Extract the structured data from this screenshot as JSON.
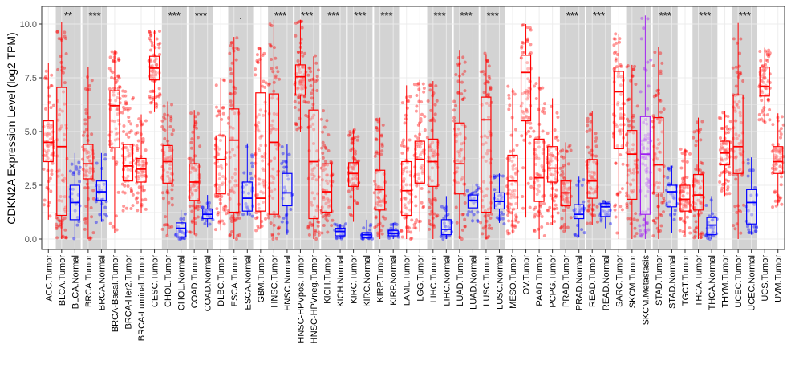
{
  "chart_data": {
    "type": "box",
    "title": "",
    "xlabel": "",
    "ylabel": "CDKN2A Expression Level (log2 TPM)",
    "ylim": [
      -0.4,
      10.6
    ],
    "yticks": [
      "0.0",
      "2.5",
      "5.0",
      "7.5",
      "10.0"
    ],
    "grid": true,
    "legend": "none",
    "colors": {
      "Tumor": "#FF0000",
      "Normal": "#0000FF",
      "Metastasis": "#A020F0",
      "shade": "#D3D3D3"
    },
    "series": [
      {
        "category": "ACC.Tumor",
        "group": "Tumor",
        "low": 0.9,
        "q1": 3.6,
        "median": 4.5,
        "q3": 5.5,
        "high": 8.2
      },
      {
        "category": "BLCA.Tumor",
        "group": "Tumor",
        "low": 0.0,
        "q1": 1.1,
        "median": 4.3,
        "q3": 7.05,
        "high": 10.1
      },
      {
        "category": "BLCA.Normal",
        "group": "Normal",
        "low": 0.1,
        "q1": 0.9,
        "median": 1.7,
        "q3": 2.5,
        "high": 4.0
      },
      {
        "category": "BRCA.Tumor",
        "group": "Tumor",
        "low": 0.0,
        "q1": 2.8,
        "median": 3.5,
        "q3": 4.4,
        "high": 8.0
      },
      {
        "category": "BRCA.Normal",
        "group": "Normal",
        "low": 0.8,
        "q1": 1.8,
        "median": 2.2,
        "q3": 2.7,
        "high": 4.0
      },
      {
        "category": "BRCA-Basal.Tumor",
        "group": "Tumor",
        "low": 0.3,
        "q1": 4.25,
        "median": 6.2,
        "q3": 6.9,
        "high": 8.8
      },
      {
        "category": "BRCA-Her2.Tumor",
        "group": "Tumor",
        "low": 1.2,
        "q1": 2.7,
        "median": 3.4,
        "q3": 4.4,
        "high": 6.9
      },
      {
        "category": "BRCA-Luminal.Tumor",
        "group": "Tumor",
        "low": 1.2,
        "q1": 2.65,
        "median": 3.25,
        "q3": 3.75,
        "high": 5.8
      },
      {
        "category": "CESC.Tumor",
        "group": "Tumor",
        "low": 5.9,
        "q1": 7.4,
        "median": 7.95,
        "q3": 8.5,
        "high": 9.7
      },
      {
        "category": "CHOL.Tumor",
        "group": "Tumor",
        "low": 0.2,
        "q1": 2.6,
        "median": 3.6,
        "q3": 4.35,
        "high": 6.4
      },
      {
        "category": "CHOL.Normal",
        "group": "Normal",
        "low": 0.0,
        "q1": 0.1,
        "median": 0.5,
        "q3": 0.75,
        "high": 1.35
      },
      {
        "category": "COAD.Tumor",
        "group": "Tumor",
        "low": 0.2,
        "q1": 1.8,
        "median": 2.65,
        "q3": 3.5,
        "high": 6.0
      },
      {
        "category": "COAD.Normal",
        "group": "Normal",
        "low": 0.55,
        "q1": 0.95,
        "median": 1.15,
        "q3": 1.4,
        "high": 2.05
      },
      {
        "category": "DLBC.Tumor",
        "group": "Tumor",
        "low": 0.4,
        "q1": 2.1,
        "median": 3.7,
        "q3": 4.8,
        "high": 7.5
      },
      {
        "category": "ESCA.Tumor",
        "group": "Tumor",
        "low": 0.0,
        "q1": 1.25,
        "median": 4.6,
        "q3": 6.05,
        "high": 9.4
      },
      {
        "category": "ESCA.Normal",
        "group": "Normal",
        "low": 1.1,
        "q1": 1.3,
        "median": 1.9,
        "q3": 2.65,
        "high": 4.45
      },
      {
        "category": "GBM.Tumor",
        "group": "Tumor",
        "low": 0.5,
        "q1": 1.3,
        "median": 1.9,
        "q3": 6.8,
        "high": 8.9
      },
      {
        "category": "HNSC.Tumor",
        "group": "Tumor",
        "low": 0.0,
        "q1": 1.15,
        "median": 4.5,
        "q3": 6.75,
        "high": 10.2
      },
      {
        "category": "HNSC.Normal",
        "group": "Normal",
        "low": 0.2,
        "q1": 1.55,
        "median": 2.15,
        "q3": 3.05,
        "high": 4.4
      },
      {
        "category": "HNSC-HPVpos.Tumor",
        "group": "Tumor",
        "low": 5.0,
        "q1": 6.7,
        "median": 7.55,
        "q3": 8.1,
        "high": 10.2
      },
      {
        "category": "HNSC-HPVneg.Tumor",
        "group": "Tumor",
        "low": 0.0,
        "q1": 0.95,
        "median": 3.6,
        "q3": 6.0,
        "high": 8.5
      },
      {
        "category": "KICH.Tumor",
        "group": "Tumor",
        "low": 0.2,
        "q1": 1.25,
        "median": 2.2,
        "q3": 3.5,
        "high": 6.2
      },
      {
        "category": "KICH.Normal",
        "group": "Normal",
        "low": 0.0,
        "q1": 0.15,
        "median": 0.35,
        "q3": 0.5,
        "high": 0.7
      },
      {
        "category": "KIRC.Tumor",
        "group": "Tumor",
        "low": 0.8,
        "q1": 2.45,
        "median": 3.05,
        "q3": 3.55,
        "high": 5.1
      },
      {
        "category": "KIRC.Normal",
        "group": "Normal",
        "low": 0.0,
        "q1": 0.05,
        "median": 0.2,
        "q3": 0.3,
        "high": 0.9
      },
      {
        "category": "KIRP.Tumor",
        "group": "Tumor",
        "low": 0.0,
        "q1": 1.35,
        "median": 2.3,
        "q3": 3.2,
        "high": 5.65
      },
      {
        "category": "KIRP.Normal",
        "group": "Normal",
        "low": 0.0,
        "q1": 0.15,
        "median": 0.25,
        "q3": 0.4,
        "high": 0.75
      },
      {
        "category": "LAML.Tumor",
        "group": "Tumor",
        "low": 0.0,
        "q1": 1.1,
        "median": 2.25,
        "q3": 3.6,
        "high": 7.15
      },
      {
        "category": "LGG.Tumor",
        "group": "Tumor",
        "low": 0.35,
        "q1": 2.6,
        "median": 3.7,
        "q3": 4.55,
        "high": 7.4
      },
      {
        "category": "LIHC.Tumor",
        "group": "Tumor",
        "low": 0.0,
        "q1": 2.45,
        "median": 3.6,
        "q3": 4.65,
        "high": 7.35
      },
      {
        "category": "LIHC.Normal",
        "group": "Normal",
        "low": 0.0,
        "q1": 0.2,
        "median": 0.45,
        "q3": 0.9,
        "high": 2.0
      },
      {
        "category": "LUAD.Tumor",
        "group": "Tumor",
        "low": 0.0,
        "q1": 2.1,
        "median": 3.5,
        "q3": 5.4,
        "high": 8.8
      },
      {
        "category": "LUAD.Normal",
        "group": "Normal",
        "low": 0.75,
        "q1": 1.45,
        "median": 1.8,
        "q3": 2.05,
        "high": 2.55
      },
      {
        "category": "LUSC.Tumor",
        "group": "Tumor",
        "low": 0.0,
        "q1": 1.25,
        "median": 5.55,
        "q3": 6.6,
        "high": 8.6
      },
      {
        "category": "LUSC.Normal",
        "group": "Normal",
        "low": 0.75,
        "q1": 1.4,
        "median": 1.75,
        "q3": 2.15,
        "high": 3.05
      },
      {
        "category": "MESO.Tumor",
        "group": "Tumor",
        "low": 0.25,
        "q1": 1.4,
        "median": 2.7,
        "q3": 3.9,
        "high": 7.0
      },
      {
        "category": "OV.Tumor",
        "group": "Tumor",
        "low": 1.0,
        "q1": 5.5,
        "median": 7.75,
        "q3": 8.55,
        "high": 10.0
      },
      {
        "category": "PAAD.Tumor",
        "group": "Tumor",
        "low": 0.0,
        "q1": 1.75,
        "median": 2.85,
        "q3": 4.65,
        "high": 7.55
      },
      {
        "category": "PCPG.Tumor",
        "group": "Tumor",
        "low": 0.65,
        "q1": 2.65,
        "median": 3.3,
        "q3": 4.3,
        "high": 6.55
      },
      {
        "category": "PRAD.Tumor",
        "group": "Tumor",
        "low": 0.35,
        "q1": 1.55,
        "median": 2.15,
        "q3": 2.7,
        "high": 4.5
      },
      {
        "category": "PRAD.Normal",
        "group": "Normal",
        "low": 0.1,
        "q1": 0.95,
        "median": 1.15,
        "q3": 1.6,
        "high": 2.9
      },
      {
        "category": "READ.Tumor",
        "group": "Tumor",
        "low": 0.65,
        "q1": 1.9,
        "median": 2.7,
        "q3": 3.7,
        "high": 5.95
      },
      {
        "category": "READ.Normal",
        "group": "Normal",
        "low": 0.5,
        "q1": 1.05,
        "median": 1.5,
        "q3": 1.65,
        "high": 1.8
      },
      {
        "category": "SARC.Tumor",
        "group": "Tumor",
        "low": 0.0,
        "q1": 4.2,
        "median": 6.85,
        "q3": 7.8,
        "high": 9.55
      },
      {
        "category": "SKCM.Tumor",
        "group": "Tumor",
        "low": 0.0,
        "q1": 1.85,
        "median": 3.95,
        "q3": 5.05,
        "high": 8.1
      },
      {
        "category": "SKCM.Metastasis",
        "group": "Metastasis",
        "low": 0.0,
        "q1": 1.15,
        "median": 3.95,
        "q3": 5.7,
        "high": 10.4
      },
      {
        "category": "STAD.Tumor",
        "group": "Tumor",
        "low": 0.0,
        "q1": 2.15,
        "median": 3.45,
        "q3": 5.65,
        "high": 8.95
      },
      {
        "category": "STAD.Normal",
        "group": "Normal",
        "low": 0.3,
        "q1": 1.5,
        "median": 2.2,
        "q3": 2.5,
        "high": 3.4
      },
      {
        "category": "TGCT.Tumor",
        "group": "Tumor",
        "low": 0.2,
        "q1": 1.3,
        "median": 1.85,
        "q3": 2.5,
        "high": 4.2
      },
      {
        "category": "THCA.Tumor",
        "group": "Tumor",
        "low": 0.0,
        "q1": 1.35,
        "median": 2.05,
        "q3": 3.0,
        "high": 5.65
      },
      {
        "category": "THCA.Normal",
        "group": "Normal",
        "low": 0.0,
        "q1": 0.2,
        "median": 0.65,
        "q3": 1.0,
        "high": 2.0
      },
      {
        "category": "THYM.Tumor",
        "group": "Tumor",
        "low": 2.0,
        "q1": 3.45,
        "median": 4.0,
        "q3": 4.55,
        "high": 5.95
      },
      {
        "category": "UCEC.Tumor",
        "group": "Tumor",
        "low": 0.0,
        "q1": 3.05,
        "median": 4.3,
        "q3": 6.7,
        "high": 10.05
      },
      {
        "category": "UCEC.Normal",
        "group": "Normal",
        "low": 0.2,
        "q1": 0.7,
        "median": 1.7,
        "q3": 2.3,
        "high": 3.8
      },
      {
        "category": "UCS.Tumor",
        "group": "Tumor",
        "low": 5.4,
        "q1": 6.65,
        "median": 7.1,
        "q3": 8.0,
        "high": 8.9
      },
      {
        "category": "UVM.Tumor",
        "group": "Tumor",
        "low": 1.55,
        "q1": 3.05,
        "median": 3.6,
        "q3": 4.3,
        "high": 5.85
      }
    ],
    "shaded_pairs": [
      {
        "categories": [
          "BLCA.Tumor",
          "BLCA.Normal"
        ],
        "significance": "**"
      },
      {
        "categories": [
          "BRCA.Tumor",
          "BRCA.Normal"
        ],
        "significance": "***"
      },
      {
        "categories": [
          "CHOL.Tumor",
          "CHOL.Normal"
        ],
        "significance": "***"
      },
      {
        "categories": [
          "COAD.Tumor",
          "COAD.Normal"
        ],
        "significance": "***"
      },
      {
        "categories": [
          "ESCA.Tumor",
          "ESCA.Normal"
        ],
        "significance": "."
      },
      {
        "categories": [
          "HNSC.Tumor",
          "HNSC.Normal"
        ],
        "significance": "***"
      },
      {
        "categories": [
          "HNSC-HPVpos.Tumor",
          "HNSC-HPVneg.Tumor"
        ],
        "significance": "***"
      },
      {
        "categories": [
          "KICH.Tumor",
          "KICH.Normal"
        ],
        "significance": "***"
      },
      {
        "categories": [
          "KIRC.Tumor",
          "KIRC.Normal"
        ],
        "significance": "***"
      },
      {
        "categories": [
          "KIRP.Tumor",
          "KIRP.Normal"
        ],
        "significance": "***"
      },
      {
        "categories": [
          "LIHC.Tumor",
          "LIHC.Normal"
        ],
        "significance": "***"
      },
      {
        "categories": [
          "LUAD.Tumor",
          "LUAD.Normal"
        ],
        "significance": "***"
      },
      {
        "categories": [
          "LUSC.Tumor",
          "LUSC.Normal"
        ],
        "significance": "***"
      },
      {
        "categories": [
          "PRAD.Tumor",
          "PRAD.Normal"
        ],
        "significance": "***"
      },
      {
        "categories": [
          "READ.Tumor",
          "READ.Normal"
        ],
        "significance": "***"
      },
      {
        "categories": [
          "SKCM.Tumor",
          "SKCM.Metastasis"
        ],
        "significance": ""
      },
      {
        "categories": [
          "STAD.Tumor",
          "STAD.Normal"
        ],
        "significance": "***"
      },
      {
        "categories": [
          "THCA.Tumor",
          "THCA.Normal"
        ],
        "significance": "***"
      },
      {
        "categories": [
          "UCEC.Tumor",
          "UCEC.Normal"
        ],
        "significance": "***"
      }
    ]
  }
}
